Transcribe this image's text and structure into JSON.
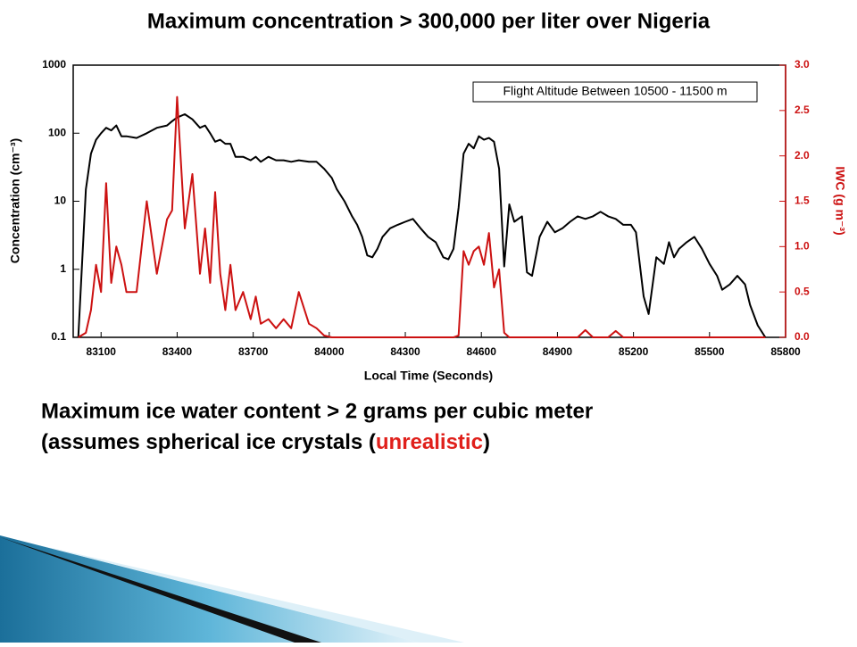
{
  "chart_data": {
    "type": "line",
    "title": "Maximum concentration > 300,000 per liter over Nigeria",
    "annotation": "Flight Altitude Between 10500 - 11500 m",
    "xlabel": "Local Time (Seconds)",
    "ylabel": "Concentration (cm⁻³)",
    "y2label": "IWC (g m⁻³)",
    "x": [
      83010,
      83040,
      83060,
      83080,
      83100,
      83120,
      83140,
      83160,
      83180,
      83200,
      83240,
      83280,
      83320,
      83360,
      83380,
      83400,
      83430,
      83460,
      83490,
      83510,
      83530,
      83550,
      83570,
      83590,
      83610,
      83630,
      83660,
      83690,
      83710,
      83730,
      83760,
      83790,
      83820,
      83850,
      83880,
      83920,
      83950,
      83980,
      84010,
      84030,
      84060,
      84090,
      84110,
      84130,
      84150,
      84170,
      84190,
      84210,
      84240,
      84270,
      84300,
      84330,
      84360,
      84390,
      84420,
      84450,
      84470,
      84490,
      84510,
      84530,
      84550,
      84570,
      84590,
      84610,
      84630,
      84650,
      84670,
      84690,
      84710,
      84730,
      84760,
      84780,
      84800,
      84830,
      84860,
      84890,
      84920,
      84950,
      84980,
      85010,
      85040,
      85070,
      85100,
      85130,
      85160,
      85190,
      85210,
      85240,
      85260,
      85290,
      85320,
      85340,
      85360,
      85380,
      85410,
      85440,
      85470,
      85500,
      85530,
      85550,
      85580,
      85610,
      85640,
      85660,
      85690,
      85720
    ],
    "series": [
      {
        "color": "#000000",
        "values": [
          0.1,
          15,
          50,
          80,
          100,
          120,
          110,
          130,
          90,
          90,
          85,
          100,
          120,
          130,
          150,
          170,
          190,
          160,
          120,
          130,
          100,
          75,
          80,
          70,
          70,
          45,
          45,
          40,
          45,
          38,
          45,
          40,
          40,
          38,
          40,
          38,
          38,
          30,
          22,
          15,
          10,
          6,
          4.5,
          3,
          1.6,
          1.5,
          2,
          3,
          4,
          4.5,
          5,
          5.5,
          4,
          3,
          2.5,
          1.5,
          1.4,
          2,
          8,
          50,
          70,
          60,
          90,
          80,
          85,
          75,
          30,
          1.1,
          9,
          5,
          6,
          0.9,
          0.8,
          3,
          5,
          3.5,
          4,
          5,
          6,
          5.5,
          6,
          7,
          6,
          5.5,
          4.5,
          4.5,
          3.5,
          0.4,
          0.22,
          1.5,
          1.2,
          2.5,
          1.5,
          2,
          2.5,
          3,
          2,
          1.2,
          0.8,
          0.5,
          0.6,
          0.8,
          0.6,
          0.3,
          0.15,
          0.1
        ]
      },
      {
        "color": "#cc1111",
        "axis": "y2",
        "values": [
          0,
          0.05,
          0.3,
          0.8,
          0.5,
          1.7,
          0.6,
          1.0,
          0.8,
          0.5,
          0.5,
          1.5,
          0.7,
          1.3,
          1.4,
          2.65,
          1.2,
          1.8,
          0.7,
          1.2,
          0.6,
          1.6,
          0.7,
          0.3,
          0.8,
          0.3,
          0.5,
          0.2,
          0.45,
          0.15,
          0.2,
          0.1,
          0.2,
          0.1,
          0.5,
          0.15,
          0.1,
          0.02,
          0,
          0,
          0,
          0,
          0,
          0,
          0,
          0,
          0,
          0,
          0,
          0,
          0,
          0,
          0,
          0,
          0,
          0,
          0,
          0,
          0.02,
          0.95,
          0.8,
          0.95,
          1.0,
          0.8,
          1.15,
          0.55,
          0.75,
          0.05,
          0,
          0,
          0,
          0,
          0,
          0,
          0,
          0,
          0,
          0,
          0,
          0.08,
          0,
          0,
          0,
          0.07,
          0,
          0,
          0,
          0,
          0,
          0,
          0,
          0,
          0,
          0,
          0,
          0,
          0,
          0,
          0,
          0,
          0,
          0,
          0,
          0,
          0,
          0
        ]
      }
    ],
    "xlim": [
      82990,
      85800
    ],
    "xticks": [
      83100,
      83400,
      83700,
      84000,
      84300,
      84600,
      84900,
      85200,
      85500,
      85800
    ],
    "ylim": [
      0.1,
      1000
    ],
    "yticks": [
      0.1,
      1,
      10,
      100,
      1000
    ],
    "log_y": true,
    "y2lim": [
      0,
      3
    ],
    "y2ticks": [
      {
        "value": 0,
        "label": "0.0"
      },
      0.5,
      {
        "value": 1,
        "label": "1.0"
      },
      1.5,
      {
        "value": 2,
        "label": "2.0"
      },
      2.5,
      {
        "value": 3,
        "label": "3.0"
      }
    ],
    "y2color": "#cc1111"
  },
  "notes": {
    "line1": "Maximum ice water content > 2 grams per cubic meter",
    "line2_before": "(assumes spherical ice crystals (",
    "line2_highlight": "unrealistic",
    "line2_after": ")"
  }
}
